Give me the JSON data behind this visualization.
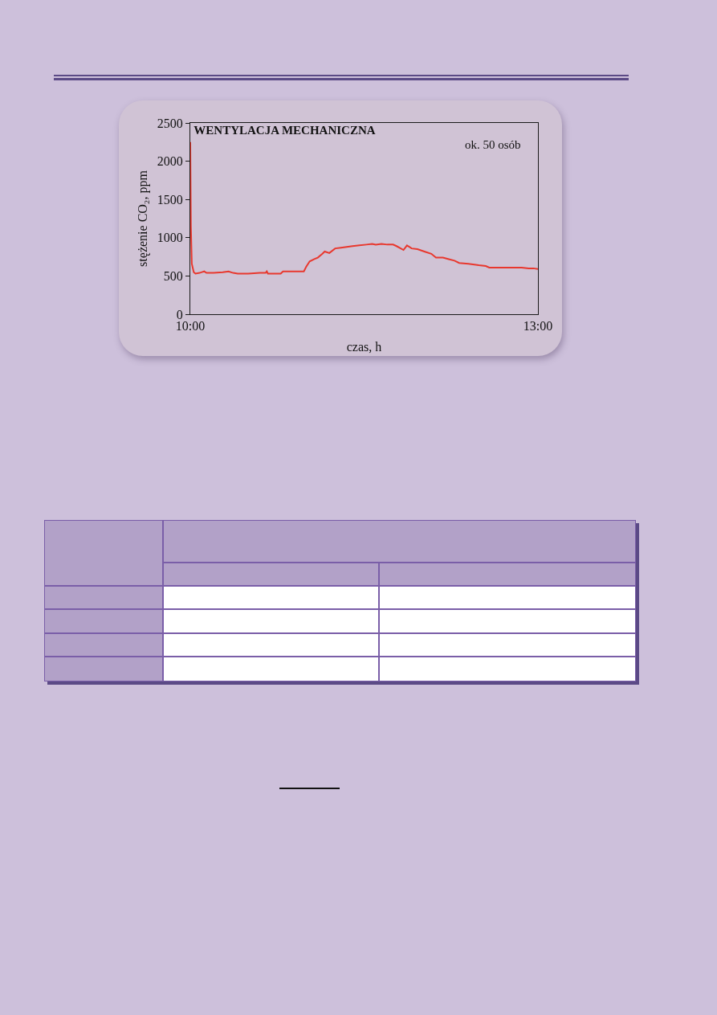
{
  "chart_data": {
    "type": "line",
    "title": "WENTYLACJA MECHANICZNA",
    "xlabel": "czas, h",
    "ylabel": "stężenie CO₂, ppm",
    "annotations": [
      "ok. 50 osób"
    ],
    "x": [
      10.0,
      10.005,
      10.013,
      10.03,
      10.045,
      10.08,
      10.1,
      10.12,
      10.14,
      10.2,
      10.28,
      10.33,
      10.37,
      10.41,
      10.5,
      10.6,
      10.65,
      10.66,
      10.67,
      10.78,
      10.8,
      10.9,
      10.98,
      11.0,
      11.03,
      11.07,
      11.1,
      11.14,
      11.16,
      11.2,
      11.25,
      11.3,
      11.35,
      11.4,
      11.46,
      11.52,
      11.57,
      11.6,
      11.65,
      11.7,
      11.75,
      11.78,
      11.84,
      11.87,
      11.91,
      11.96,
      12.02,
      12.08,
      12.12,
      12.18,
      12.23,
      12.28,
      12.32,
      12.4,
      12.49,
      12.55,
      12.58,
      12.7,
      12.79,
      12.86,
      12.92,
      12.96,
      13.0
    ],
    "values": [
      2250,
      1150,
      660,
      550,
      530,
      540,
      550,
      560,
      540,
      540,
      550,
      560,
      540,
      530,
      530,
      540,
      540,
      560,
      530,
      530,
      560,
      560,
      560,
      620,
      690,
      720,
      740,
      790,
      820,
      800,
      860,
      870,
      880,
      890,
      900,
      910,
      920,
      910,
      920,
      910,
      910,
      890,
      840,
      900,
      860,
      850,
      820,
      790,
      740,
      740,
      720,
      700,
      670,
      660,
      640,
      630,
      610,
      610,
      610,
      610,
      600,
      600,
      590
    ],
    "color": "#e8382e",
    "line_style": "solid",
    "xlim": [
      10,
      13
    ],
    "xticks": [
      {
        "value": 10,
        "label": "10:00"
      },
      {
        "value": 13,
        "label": "13:00"
      }
    ],
    "ylim": [
      0,
      2500
    ],
    "yticks": [
      0,
      500,
      1000,
      1500,
      2000,
      2500
    ],
    "grid": false
  }
}
